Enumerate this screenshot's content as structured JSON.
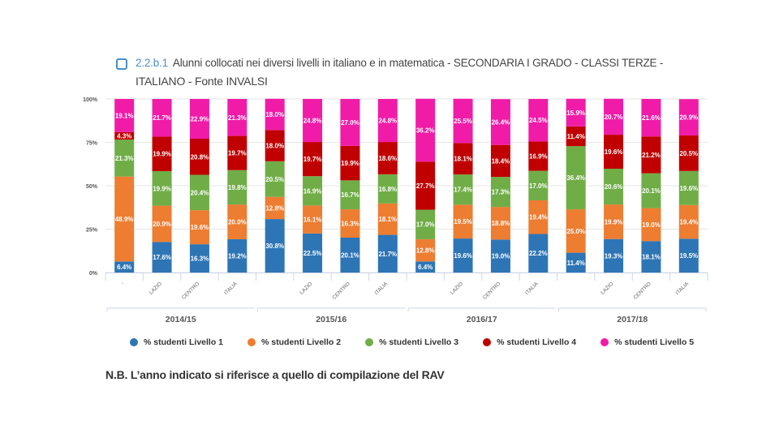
{
  "header": {
    "code": "2.2.b.1",
    "title_line1": "Alunni collocati nei diversi livelli in italiano e in matematica - SECONDARIA I GRADO - CLASSI TERZE -",
    "title_line2": "ITALIANO - Fonte INVALSI"
  },
  "note": "N.B. L’anno indicato si riferisce a quello di compilazione del RAV",
  "chart_data": {
    "type": "bar",
    "stacked": true,
    "percent": true,
    "title": "2.2.b.1 Alunni collocati nei diversi livelli in italiano e in matematica - SECONDARIA I GRADO - CLASSI TERZE - ITALIANO - Fonte INVALSI",
    "ylim": [
      0,
      100
    ],
    "yticks": [
      "0%",
      "25%",
      "50%",
      "75%",
      "100%"
    ],
    "grid": true,
    "legend_position": "bottom",
    "groups": [
      {
        "label": "2014/15",
        "categories": [
          "-",
          "LAZIO",
          "CENTRO",
          "ITALIA"
        ]
      },
      {
        "label": "2015/16",
        "categories": [
          "",
          "LAZIO",
          "CENTRO",
          "ITALIA"
        ]
      },
      {
        "label": "2016/17",
        "categories": [
          "",
          "LAZIO",
          "CENTRO",
          "ITALIA"
        ]
      },
      {
        "label": "2017/18",
        "categories": [
          "",
          "LAZIO",
          "CENTRO",
          "ITALIA"
        ]
      }
    ],
    "series": [
      {
        "name": "% studenti Livello 1",
        "color": "#2e75b6",
        "values": [
          6.4,
          17.6,
          16.3,
          19.2,
          30.8,
          22.5,
          20.1,
          21.7,
          6.4,
          19.6,
          19.0,
          22.2,
          11.4,
          19.3,
          18.1,
          19.5
        ]
      },
      {
        "name": "% studenti Livello 2",
        "color": "#ed7d31",
        "values": [
          48.9,
          20.9,
          19.6,
          20.0,
          12.8,
          16.1,
          16.3,
          18.1,
          12.8,
          19.5,
          18.8,
          19.4,
          25.0,
          19.9,
          19.0,
          19.4
        ]
      },
      {
        "name": "% studenti Livello 3",
        "color": "#70ad47",
        "values": [
          21.3,
          19.9,
          20.4,
          19.8,
          20.5,
          16.9,
          16.7,
          16.8,
          17.0,
          17.4,
          17.3,
          17.0,
          36.4,
          20.6,
          20.1,
          19.6
        ]
      },
      {
        "name": "% studenti Livello 4",
        "color": "#c00000",
        "values": [
          4.3,
          19.9,
          20.8,
          19.7,
          18.0,
          19.7,
          19.9,
          18.6,
          27.7,
          18.1,
          18.4,
          16.9,
          11.4,
          19.6,
          21.2,
          20.5
        ]
      },
      {
        "name": "% studenti Livello 5",
        "color": "#f01ca8",
        "values": [
          19.1,
          21.7,
          22.9,
          21.3,
          18.0,
          24.8,
          27.0,
          24.8,
          36.2,
          25.5,
          26.4,
          24.5,
          15.9,
          20.7,
          21.6,
          20.9
        ]
      }
    ]
  }
}
